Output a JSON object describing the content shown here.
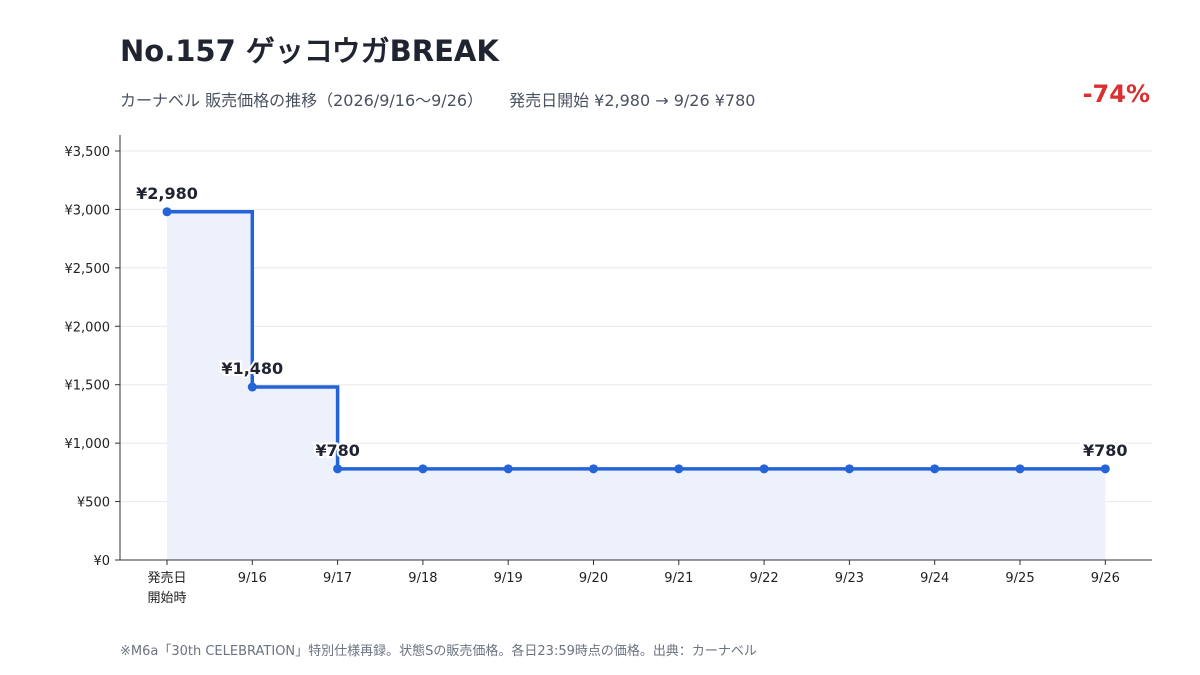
{
  "header": {
    "title": "No.157 ゲッコウガBREAK",
    "subtitle": "カーナベル 販売価格の推移（2026/9/16〜9/26）",
    "summary": "発売日開始 ¥2,980 → 9/26 ¥780",
    "change": "-74%"
  },
  "chart_data": {
    "type": "line",
    "step": "post",
    "categories": [
      "発売日\n開始時",
      "9/16",
      "9/17",
      "9/18",
      "9/19",
      "9/20",
      "9/21",
      "9/22",
      "9/23",
      "9/24",
      "9/25",
      "9/26"
    ],
    "series": [
      {
        "values": [
          2980,
          1480,
          780,
          780,
          780,
          780,
          780,
          780,
          780,
          780,
          780,
          780
        ]
      }
    ],
    "data_labels": [
      {
        "index": 0,
        "text": "¥2,980"
      },
      {
        "index": 1,
        "text": "¥1,480"
      },
      {
        "index": 2,
        "text": "¥780"
      },
      {
        "index": 11,
        "text": "¥780"
      }
    ],
    "ylim": [
      0,
      3500
    ],
    "yticks": [
      0,
      500,
      1000,
      1500,
      2000,
      2500,
      3000,
      3500
    ],
    "ytick_labels": [
      "¥0",
      "¥500",
      "¥1,000",
      "¥1,500",
      "¥2,000",
      "¥2,500",
      "¥3,000",
      "¥3,500"
    ],
    "grid": true,
    "area_fill": true,
    "line_color": "#2563d9",
    "fill_color": "#ecf1fb"
  },
  "footer": {
    "note": "※M6a「30th CELEBRATION」特別仕様再録。状態Sの販売価格。各日23:59時点の価格。出典：カーナベル"
  }
}
